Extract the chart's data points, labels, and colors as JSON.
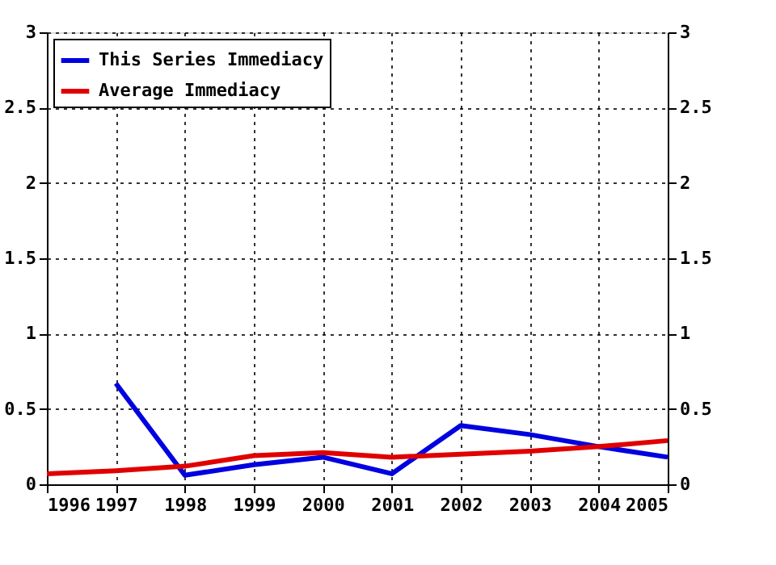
{
  "chart_data": {
    "type": "line",
    "x": [
      1996,
      1997,
      1998,
      1999,
      2000,
      2001,
      2002,
      2003,
      2004,
      2005
    ],
    "series": [
      {
        "name": "This Series Immediacy",
        "color": "#0000e0",
        "values": [
          null,
          0.67,
          0.06,
          0.13,
          0.18,
          0.07,
          0.39,
          0.33,
          0.25,
          0.18
        ]
      },
      {
        "name": "Average Immediacy",
        "color": "#e00000",
        "values": [
          0.07,
          0.09,
          0.12,
          0.19,
          0.21,
          0.18,
          0.2,
          0.22,
          0.25,
          0.29
        ]
      }
    ],
    "xlim": [
      1996,
      2005
    ],
    "xticks": [
      1996,
      1997,
      1998,
      1999,
      2000,
      2001,
      2002,
      2003,
      2004,
      2005
    ],
    "ylim": [
      0,
      3
    ],
    "yticks": [
      0,
      0.5,
      1,
      1.5,
      2,
      2.5,
      3
    ],
    "y2lim": [
      0,
      3
    ],
    "y2ticks": [
      0,
      0.5,
      1,
      1.5,
      2,
      2.5,
      3
    ],
    "grid": true,
    "legend": "top left",
    "marker": "none",
    "line_style": "solid"
  }
}
